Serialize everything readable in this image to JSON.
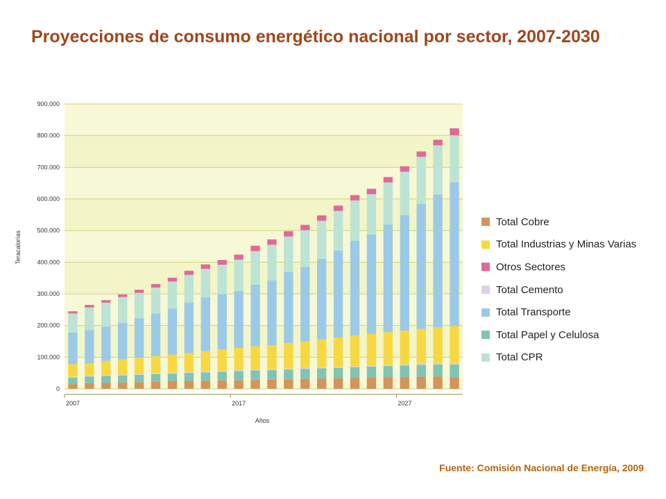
{
  "title": "Proyecciones de consumo energético nacional por sector, 2007-2030",
  "source": "Fuente: Comisión Nacional de Energía, 2009",
  "chart_data": {
    "type": "bar",
    "stacked": true,
    "xlabel": "Años",
    "ylabel": "Teracalorías",
    "ylim": [
      0,
      900000
    ],
    "ytick_labels": [
      "0",
      "100.000",
      "200.000",
      "300.000",
      "400.000",
      "500.000",
      "600.000",
      "700.000",
      "800.000",
      "900.000"
    ],
    "x_tick_labels": [
      {
        "label": "2007",
        "index": 0
      },
      {
        "label": "2017",
        "index": 10
      },
      {
        "label": "2027",
        "index": 20
      }
    ],
    "categories": [
      "2007",
      "2008",
      "2009",
      "2010",
      "2011",
      "2012",
      "2013",
      "2014",
      "2015",
      "2016",
      "2017",
      "2018",
      "2019",
      "2020",
      "2021",
      "2022",
      "2023",
      "2024",
      "2025",
      "2026",
      "2027",
      "2028",
      "2029",
      "2030"
    ],
    "grid": true,
    "legend_position": "right",
    "series": [
      {
        "name": "Total Cobre",
        "color": "#d6935a",
        "values": [
          15000,
          18000,
          19000,
          20000,
          21000,
          22000,
          23000,
          24000,
          25000,
          26000,
          27000,
          28000,
          29000,
          30000,
          31000,
          32000,
          33000,
          34000,
          35000,
          36000,
          37000,
          38000,
          39000,
          37000
        ]
      },
      {
        "name": "Total Papel y Celulosa",
        "color": "#7fc4b4",
        "values": [
          20000,
          21000,
          22000,
          22000,
          23000,
          24000,
          25000,
          26000,
          27000,
          28000,
          29000,
          30000,
          30000,
          31000,
          32000,
          33000,
          33000,
          34000,
          35000,
          36000,
          37000,
          38000,
          38000,
          40000
        ]
      },
      {
        "name": "Total Cemento",
        "color": "#dcd0ea",
        "values": [
          3000,
          3000,
          3000,
          3000,
          3000,
          3000,
          3000,
          3000,
          3000,
          3000,
          3000,
          3000,
          3000,
          3000,
          3000,
          3000,
          3000,
          3000,
          3000,
          3000,
          3000,
          3000,
          3000,
          3000
        ]
      },
      {
        "name": "Total Industrias y Minas Varias",
        "color": "#f7d842",
        "values": [
          40000,
          38000,
          44000,
          48000,
          51000,
          54000,
          57000,
          60000,
          64000,
          67000,
          70000,
          73000,
          76000,
          80000,
          84000,
          88000,
          93000,
          97000,
          100000,
          104000,
          107000,
          110000,
          114000,
          118000
        ]
      },
      {
        "name": "Total Transporte",
        "color": "#9ccae6",
        "values": [
          100000,
          105000,
          108000,
          115000,
          125000,
          135000,
          145000,
          160000,
          170000,
          175000,
          180000,
          195000,
          205000,
          225000,
          235000,
          255000,
          275000,
          300000,
          315000,
          340000,
          365000,
          395000,
          420000,
          455000
        ]
      },
      {
        "name": "Total CPR",
        "color": "#bde3d4",
        "values": [
          60000,
          72000,
          76000,
          82000,
          80000,
          82000,
          86000,
          87000,
          90000,
          93000,
          99000,
          106000,
          112000,
          112000,
          116000,
          120000,
          125000,
          127000,
          127000,
          133000,
          137000,
          149000,
          155000,
          148000
        ]
      },
      {
        "name": "Otros Sectores",
        "color": "#e0699a",
        "values": [
          7000,
          8000,
          8000,
          8000,
          10000,
          11000,
          12000,
          13000,
          14000,
          15000,
          16000,
          17000,
          17000,
          17000,
          17000,
          17000,
          17000,
          17000,
          17000,
          17000,
          17000,
          17000,
          18000,
          22000
        ]
      }
    ]
  },
  "legend": [
    {
      "label": "Total Cobre",
      "color": "#d6935a"
    },
    {
      "label": "Total Industrias y Minas Varias",
      "color": "#f7d842"
    },
    {
      "label": "Otros Sectores",
      "color": "#e0699a"
    },
    {
      "label": "Total Cemento",
      "color": "#dcd0ea"
    },
    {
      "label": "Total Transporte",
      "color": "#9ccae6"
    },
    {
      "label": "Total Papel y Celulosa",
      "color": "#7fc4b4"
    },
    {
      "label": "Total CPR",
      "color": "#bde3d4"
    }
  ]
}
